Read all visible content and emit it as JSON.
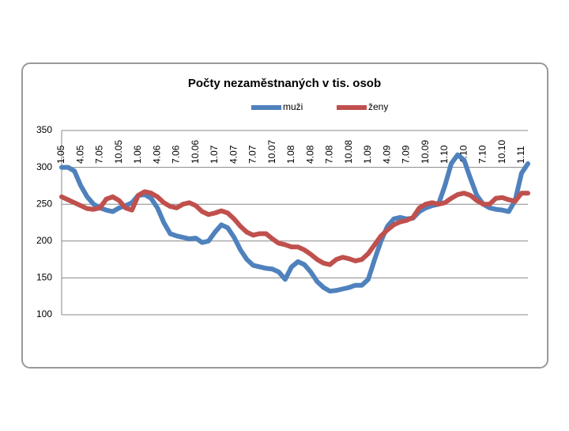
{
  "chart_data": {
    "type": "line",
    "title": "Počty nezaměstnaných v tis. osob",
    "categories": [
      "1.05",
      null,
      null,
      "4.05",
      null,
      null,
      "7.05",
      null,
      null,
      "10.05",
      null,
      null,
      "1.06",
      null,
      null,
      "4.06",
      null,
      null,
      "7.06",
      null,
      null,
      "10.06",
      null,
      null,
      "1.07",
      null,
      null,
      "4.07",
      null,
      null,
      "7.07",
      null,
      null,
      "10.07",
      null,
      null,
      "1.08",
      null,
      null,
      "4.08",
      null,
      null,
      "7.08",
      null,
      null,
      "10.08",
      null,
      null,
      "1.09",
      null,
      null,
      "4.09",
      null,
      null,
      "7.09",
      null,
      null,
      "10.09",
      null,
      null,
      "1.10",
      null,
      null,
      "4.10",
      null,
      null,
      "7.10",
      null,
      null,
      "10.10",
      null,
      null,
      "1.11",
      null
    ],
    "series": [
      {
        "name": "muži",
        "color": "#4f81bd",
        "values": [
          300,
          300,
          295,
          275,
          260,
          250,
          245,
          242,
          240,
          245,
          248,
          252,
          262,
          263,
          258,
          245,
          225,
          210,
          207,
          205,
          203,
          204,
          198,
          200,
          212,
          222,
          218,
          205,
          188,
          175,
          167,
          165,
          163,
          162,
          158,
          148,
          165,
          172,
          168,
          158,
          145,
          137,
          132,
          133,
          135,
          137,
          140,
          140,
          148,
          175,
          200,
          220,
          230,
          232,
          230,
          231,
          240,
          245,
          248,
          250,
          275,
          305,
          317,
          310,
          285,
          262,
          250,
          245,
          243,
          242,
          240,
          255,
          292,
          305
        ]
      },
      {
        "name": "ženy",
        "color": "#c0504d",
        "values": [
          260,
          256,
          252,
          248,
          244,
          243,
          245,
          257,
          260,
          255,
          245,
          242,
          262,
          267,
          265,
          260,
          252,
          247,
          245,
          250,
          252,
          248,
          240,
          236,
          238,
          241,
          238,
          230,
          220,
          212,
          208,
          210,
          210,
          203,
          197,
          195,
          192,
          192,
          188,
          182,
          175,
          170,
          168,
          175,
          178,
          176,
          173,
          175,
          183,
          195,
          207,
          215,
          222,
          226,
          228,
          232,
          245,
          250,
          252,
          250,
          252,
          258,
          263,
          265,
          262,
          255,
          250,
          250,
          258,
          259,
          256,
          254,
          265,
          265
        ]
      }
    ],
    "ylim": [
      100,
      350
    ],
    "yticks": [
      100,
      150,
      200,
      250,
      300,
      350
    ],
    "grid": true,
    "legend": "top"
  }
}
